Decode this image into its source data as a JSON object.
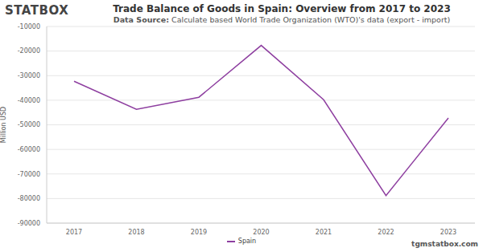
{
  "chart_data": {
    "type": "line",
    "logo": "STATBOX",
    "title": "Trade Balance of Goods in Spain: Overview from 2017 to 2023",
    "source_label": "Data Source:",
    "source": "Calculate based World Trade Organization (WTO)'s data (export - import)",
    "y_label": "Million USD",
    "watermark": "tgmstatbox.com",
    "categories": [
      "2017",
      "2018",
      "2019",
      "2020",
      "2021",
      "2022",
      "2023"
    ],
    "series": [
      {
        "name": "Spain",
        "color": "#8e3fa0",
        "values": [
          -32300,
          -43700,
          -38800,
          -17700,
          -39800,
          -78800,
          -47200
        ]
      }
    ],
    "ylim": [
      -90000,
      -10000
    ],
    "yticks": [
      -90000,
      -80000,
      -70000,
      -60000,
      -50000,
      -40000,
      -30000,
      -20000,
      -10000
    ],
    "grid": true,
    "legend": "bottom"
  }
}
